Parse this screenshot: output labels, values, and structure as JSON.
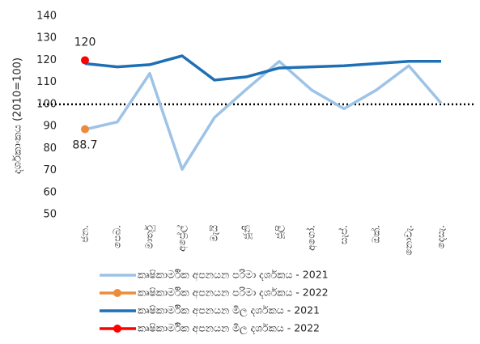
{
  "chart_data": {
    "type": "line",
    "y_label": "දර්ශකාංකය (2010=100)",
    "categories": [
      "ජන.",
      "පෙබ.",
      "මාර්තු",
      "අප්‍රේල්",
      "මැයි",
      "ජූනි",
      "ජූලි",
      "අගෝ.",
      "සැප්.",
      "ඔක්.",
      "නොවැ.",
      "දෙසැ."
    ],
    "series": [
      {
        "name": "කෘෂිකාර්මික අපනයන පරිමා දර්ශකය - 2021",
        "color": "#9dc3e6",
        "marker": false,
        "show_labels": false,
        "values": [
          88.6,
          92,
          114,
          70.5,
          94,
          107,
          119.5,
          106.5,
          98,
          106.5,
          117.5,
          100.5
        ]
      },
      {
        "name": "කෘෂිකාර්මික අපනයන පරිමා දර්ශකය - 2022",
        "color": "#ed8b3d",
        "marker": true,
        "show_labels": true,
        "label_position": "below",
        "values": [
          88.7,
          null,
          null,
          null,
          null,
          null,
          null,
          null,
          null,
          null,
          null,
          null
        ]
      },
      {
        "name": "කෘෂිකාර්මික අපනයන මිල දර්ශකය - 2021",
        "color": "#1f6fb5",
        "marker": false,
        "show_labels": false,
        "values": [
          118.5,
          117,
          118,
          122,
          111,
          112.5,
          116.5,
          117,
          117.5,
          118.5,
          119.5,
          119.5
        ]
      },
      {
        "name": "කෘෂිකාර්මික අපනයන මිල දර්ශකය - 2022",
        "color": "#ff0000",
        "marker": true,
        "show_labels": true,
        "label_position": "above",
        "values": [
          120,
          null,
          null,
          null,
          null,
          null,
          null,
          null,
          null,
          null,
          null,
          null
        ]
      }
    ],
    "reference_line": 100,
    "ylim": [
      50,
      140
    ],
    "yticks": [
      50,
      60,
      70,
      80,
      90,
      100,
      110,
      120,
      130,
      140
    ]
  }
}
